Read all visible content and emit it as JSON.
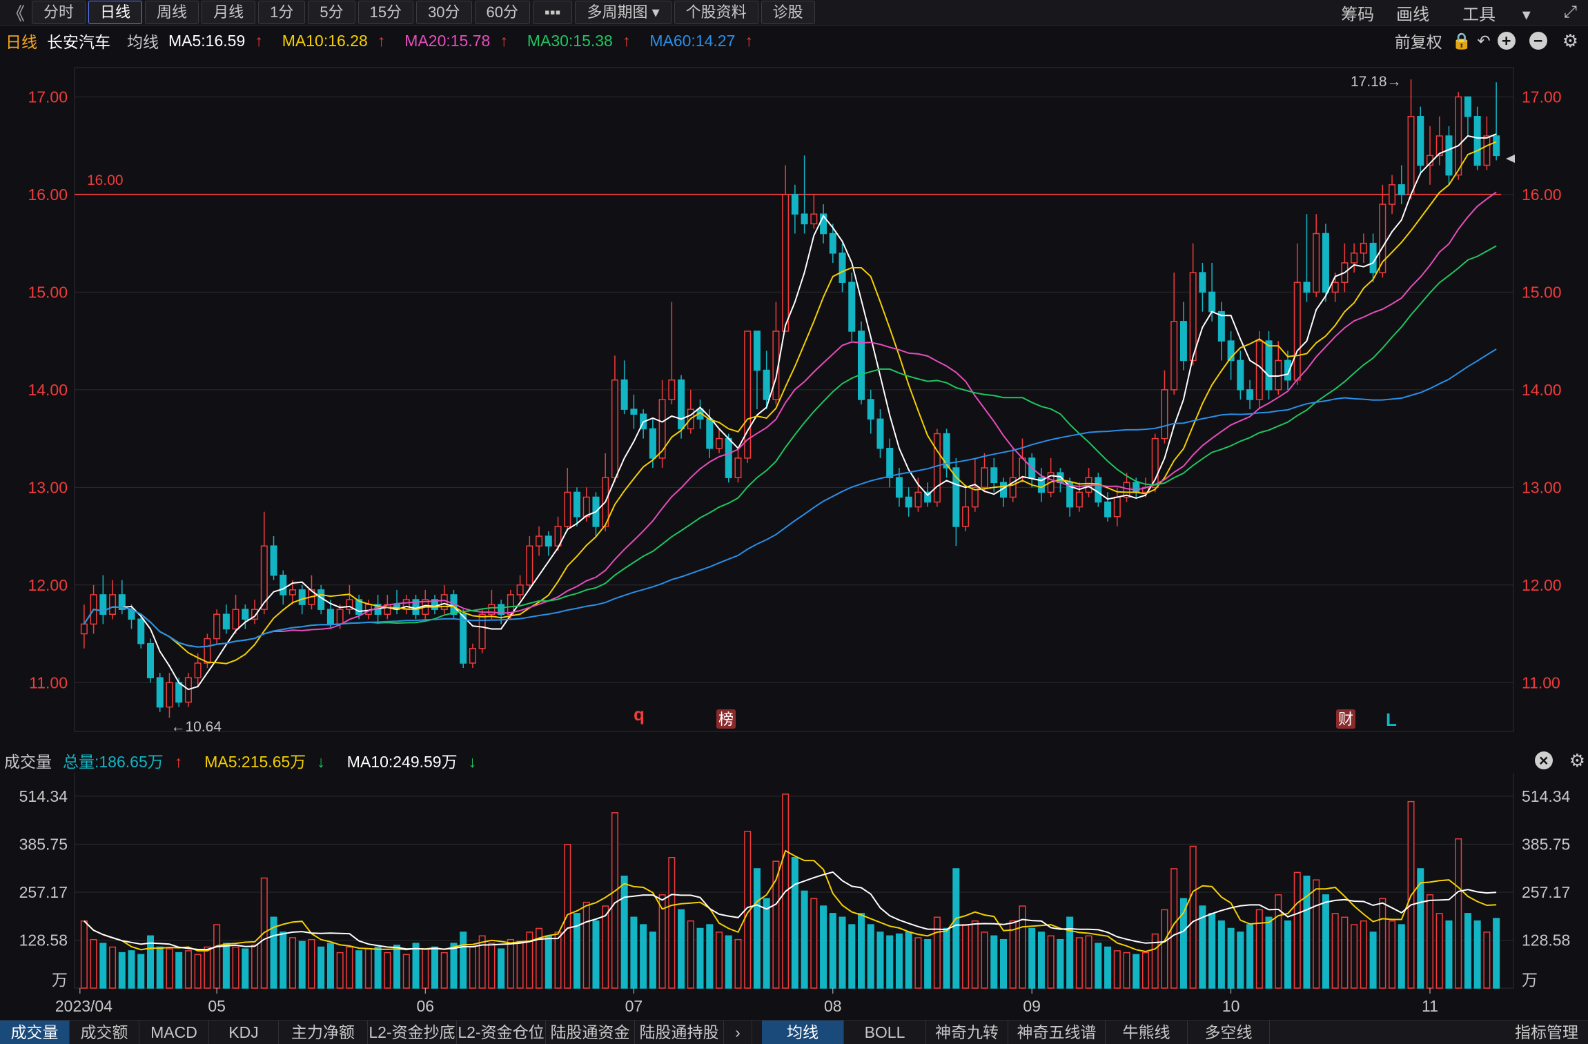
{
  "toolbar": {
    "back": "《",
    "periods": [
      "分时",
      "日线",
      "周线",
      "月线",
      "1分",
      "5分",
      "15分",
      "30分",
      "60分"
    ],
    "more": "▪▪▪",
    "multi": "多周期图",
    "stock_info": "个股资料",
    "diagnose": "诊股",
    "right": [
      "筹码",
      "画线",
      "工具"
    ]
  },
  "info": {
    "period": "日线",
    "name": "长安汽车",
    "ma_label": "均线",
    "ma5": "MA5:16.59",
    "ma10": "MA10:16.28",
    "ma20": "MA20:15.78",
    "ma30": "MA30:15.38",
    "ma60": "MA60:14.27",
    "adjust": "前复权"
  },
  "volume_info": {
    "title": "成交量",
    "total": "总量:186.65万",
    "ma5": "MA5:215.65万",
    "ma10": "MA10:249.59万"
  },
  "price_axis": [
    "17.00",
    "16.00",
    "15.00",
    "14.00",
    "13.00",
    "12.00",
    "11.00"
  ],
  "volume_axis": [
    "514.34",
    "385.75",
    "257.17",
    "128.58",
    "万"
  ],
  "dates": [
    "2023/04",
    "05",
    "06",
    "07",
    "08",
    "09",
    "10",
    "11"
  ],
  "markers": {
    "high_label": "17.18→",
    "low_label": "←10.64",
    "hline_label": "16.00",
    "event_q": "q",
    "event_bang": "榜",
    "event_cai": "财",
    "event_L": "L"
  },
  "bottom_tabs": [
    "成交量",
    "成交额",
    "MACD",
    "KDJ",
    "主力净额",
    "L2-资金抄底",
    "L2-资金仓位",
    "陆股通资金",
    "陆股通持股"
  ],
  "indicator_tabs": [
    "均线",
    "BOLL",
    "神奇九转",
    "神奇五线谱",
    "牛熊线",
    "多空线"
  ],
  "indicator_manage": "指标管理",
  "colors": {
    "up": "#f23b3b",
    "down": "#13b5c4",
    "ma5": "#ffffff",
    "ma10": "#f5d000",
    "ma20": "#e74dbd",
    "ma30": "#1fc65f",
    "ma60": "#2a8fe8",
    "hline": "#e03a3a"
  },
  "chart_data": {
    "type": "candlestick",
    "ylim": [
      10.5,
      17.3
    ],
    "hline": 16.0,
    "vol_ylim": [
      0,
      540
    ],
    "candles": [
      [
        11.5,
        11.6,
        11.8,
        11.35,
        180
      ],
      [
        11.6,
        11.9,
        12.0,
        11.5,
        130
      ],
      [
        11.9,
        11.7,
        12.1,
        11.6,
        120
      ],
      [
        11.7,
        11.9,
        12.05,
        11.65,
        110
      ],
      [
        11.9,
        11.75,
        12.05,
        11.7,
        95
      ],
      [
        11.75,
        11.65,
        11.8,
        11.55,
        100
      ],
      [
        11.65,
        11.4,
        11.7,
        11.35,
        90
      ],
      [
        11.4,
        11.05,
        11.45,
        11.0,
        140
      ],
      [
        11.05,
        10.75,
        11.1,
        10.7,
        110
      ],
      [
        10.75,
        11.0,
        11.1,
        10.64,
        105
      ],
      [
        11.0,
        10.8,
        11.05,
        10.75,
        95
      ],
      [
        10.8,
        11.05,
        11.1,
        10.75,
        100
      ],
      [
        11.05,
        11.2,
        11.3,
        10.95,
        90
      ],
      [
        11.2,
        11.45,
        11.5,
        11.15,
        110
      ],
      [
        11.45,
        11.7,
        11.75,
        11.4,
        170
      ],
      [
        11.7,
        11.55,
        11.8,
        11.5,
        120
      ],
      [
        11.55,
        11.75,
        11.9,
        11.5,
        110
      ],
      [
        11.75,
        11.65,
        11.8,
        11.55,
        105
      ],
      [
        11.65,
        11.75,
        11.85,
        11.6,
        115
      ],
      [
        11.75,
        12.4,
        12.75,
        11.7,
        295
      ],
      [
        12.4,
        12.1,
        12.5,
        12.05,
        190
      ],
      [
        12.1,
        11.9,
        12.15,
        11.8,
        150
      ],
      [
        11.9,
        11.95,
        12.05,
        11.8,
        135
      ],
      [
        11.95,
        11.8,
        12.0,
        11.7,
        125
      ],
      [
        11.8,
        11.95,
        12.1,
        11.75,
        130
      ],
      [
        11.95,
        11.75,
        12.0,
        11.7,
        110
      ],
      [
        11.75,
        11.6,
        11.85,
        11.55,
        120
      ],
      [
        11.6,
        11.75,
        11.8,
        11.55,
        95
      ],
      [
        11.75,
        11.85,
        12.0,
        11.7,
        110
      ],
      [
        11.85,
        11.7,
        11.9,
        11.65,
        100
      ],
      [
        11.7,
        11.8,
        11.85,
        11.65,
        105
      ],
      [
        11.8,
        11.7,
        11.9,
        11.6,
        110
      ],
      [
        11.7,
        11.8,
        11.9,
        11.65,
        95
      ],
      [
        11.8,
        11.75,
        11.95,
        11.7,
        115
      ],
      [
        11.75,
        11.85,
        11.9,
        11.7,
        90
      ],
      [
        11.85,
        11.7,
        11.9,
        11.65,
        120
      ],
      [
        11.7,
        11.85,
        11.95,
        11.65,
        105
      ],
      [
        11.85,
        11.75,
        11.9,
        11.7,
        110
      ],
      [
        11.75,
        11.9,
        12.0,
        11.7,
        95
      ],
      [
        11.9,
        11.7,
        11.95,
        11.65,
        120
      ],
      [
        11.7,
        11.2,
        11.75,
        11.15,
        150
      ],
      [
        11.2,
        11.35,
        11.4,
        11.15,
        110
      ],
      [
        11.35,
        11.7,
        11.75,
        11.3,
        140
      ],
      [
        11.7,
        11.8,
        11.95,
        11.65,
        120
      ],
      [
        11.8,
        11.7,
        11.85,
        11.6,
        105
      ],
      [
        11.7,
        11.9,
        11.95,
        11.65,
        130
      ],
      [
        11.9,
        12.0,
        12.1,
        11.85,
        125
      ],
      [
        12.0,
        12.4,
        12.5,
        11.95,
        150
      ],
      [
        12.4,
        12.5,
        12.6,
        12.3,
        160
      ],
      [
        12.5,
        12.4,
        12.55,
        12.3,
        140
      ],
      [
        12.4,
        12.6,
        12.7,
        12.35,
        150
      ],
      [
        12.6,
        12.95,
        13.2,
        12.55,
        385
      ],
      [
        12.95,
        12.7,
        13.0,
        12.6,
        200
      ],
      [
        12.7,
        12.9,
        13.0,
        12.65,
        230
      ],
      [
        12.9,
        12.6,
        12.95,
        12.5,
        180
      ],
      [
        12.6,
        13.1,
        13.35,
        12.55,
        220
      ],
      [
        13.1,
        14.1,
        14.35,
        13.05,
        470
      ],
      [
        14.1,
        13.8,
        14.3,
        13.75,
        300
      ],
      [
        13.8,
        13.75,
        13.95,
        13.6,
        190
      ],
      [
        13.75,
        13.6,
        13.8,
        13.5,
        170
      ],
      [
        13.6,
        13.3,
        13.7,
        13.2,
        150
      ],
      [
        13.3,
        13.9,
        14.1,
        13.2,
        250
      ],
      [
        13.9,
        14.1,
        14.9,
        13.85,
        350
      ],
      [
        14.1,
        13.6,
        14.15,
        13.5,
        210
      ],
      [
        13.6,
        13.8,
        14.0,
        13.55,
        180
      ],
      [
        13.8,
        13.7,
        13.9,
        13.6,
        160
      ],
      [
        13.7,
        13.4,
        13.8,
        13.3,
        170
      ],
      [
        13.4,
        13.5,
        13.6,
        13.35,
        150
      ],
      [
        13.5,
        13.1,
        13.55,
        13.05,
        140
      ],
      [
        13.1,
        13.3,
        13.4,
        13.05,
        130
      ],
      [
        13.3,
        14.6,
        14.6,
        13.25,
        420
      ],
      [
        14.6,
        14.2,
        14.6,
        13.8,
        320
      ],
      [
        14.2,
        13.9,
        14.4,
        13.8,
        240
      ],
      [
        13.9,
        14.6,
        14.9,
        13.85,
        340
      ],
      [
        14.6,
        16.0,
        16.3,
        14.6,
        520
      ],
      [
        16.0,
        15.8,
        16.1,
        15.6,
        350
      ],
      [
        15.8,
        15.7,
        16.4,
        15.6,
        260
      ],
      [
        15.7,
        15.8,
        16.0,
        15.65,
        240
      ],
      [
        15.8,
        15.6,
        15.9,
        15.5,
        220
      ],
      [
        15.6,
        15.4,
        15.7,
        15.3,
        200
      ],
      [
        15.4,
        15.1,
        15.5,
        15.0,
        190
      ],
      [
        15.1,
        14.6,
        15.2,
        14.5,
        170
      ],
      [
        14.6,
        13.9,
        14.7,
        13.85,
        200
      ],
      [
        13.9,
        13.7,
        14.0,
        13.55,
        170
      ],
      [
        13.7,
        13.4,
        13.8,
        13.3,
        150
      ],
      [
        13.4,
        13.1,
        13.5,
        13.0,
        140
      ],
      [
        13.1,
        12.9,
        13.2,
        12.8,
        145
      ],
      [
        12.9,
        12.8,
        13.0,
        12.7,
        150
      ],
      [
        12.8,
        12.95,
        13.1,
        12.75,
        135
      ],
      [
        12.95,
        12.85,
        13.05,
        12.8,
        130
      ],
      [
        12.85,
        13.55,
        13.6,
        12.8,
        190
      ],
      [
        13.55,
        13.2,
        13.6,
        13.1,
        160
      ],
      [
        13.2,
        12.6,
        13.3,
        12.4,
        320
      ],
      [
        12.6,
        12.8,
        13.0,
        12.55,
        170
      ],
      [
        12.8,
        13.0,
        13.3,
        12.75,
        180
      ],
      [
        13.0,
        13.2,
        13.35,
        12.95,
        150
      ],
      [
        13.2,
        13.05,
        13.3,
        12.95,
        140
      ],
      [
        13.05,
        12.9,
        13.1,
        12.8,
        130
      ],
      [
        12.9,
        13.1,
        13.4,
        12.85,
        180
      ],
      [
        13.1,
        13.3,
        13.5,
        13.05,
        220
      ],
      [
        13.3,
        13.1,
        13.35,
        13.0,
        160
      ],
      [
        13.1,
        12.95,
        13.2,
        12.85,
        150
      ],
      [
        12.95,
        13.15,
        13.3,
        12.9,
        140
      ],
      [
        13.15,
        13.05,
        13.2,
        12.95,
        130
      ],
      [
        13.05,
        12.8,
        13.1,
        12.7,
        190
      ],
      [
        12.8,
        12.95,
        13.05,
        12.75,
        135
      ],
      [
        12.95,
        13.1,
        13.2,
        12.9,
        140
      ],
      [
        13.1,
        12.85,
        13.15,
        12.8,
        120
      ],
      [
        12.85,
        12.7,
        12.95,
        12.65,
        110
      ],
      [
        12.7,
        12.9,
        13.0,
        12.6,
        100
      ],
      [
        12.9,
        13.05,
        13.15,
        12.85,
        95
      ],
      [
        13.05,
        12.95,
        13.1,
        12.9,
        90
      ],
      [
        12.95,
        13.0,
        13.1,
        12.9,
        95
      ],
      [
        13.0,
        13.5,
        13.55,
        12.95,
        145
      ],
      [
        13.5,
        14.0,
        14.2,
        13.45,
        210
      ],
      [
        14.0,
        14.7,
        15.2,
        13.95,
        320
      ],
      [
        14.7,
        14.3,
        14.9,
        14.2,
        240
      ],
      [
        14.3,
        15.2,
        15.5,
        14.25,
        380
      ],
      [
        15.2,
        15.0,
        15.3,
        14.8,
        220
      ],
      [
        15.0,
        14.8,
        15.3,
        14.7,
        200
      ],
      [
        14.8,
        14.5,
        14.9,
        14.3,
        180
      ],
      [
        14.5,
        14.3,
        14.6,
        14.1,
        160
      ],
      [
        14.3,
        14.0,
        14.4,
        13.9,
        150
      ],
      [
        14.0,
        13.9,
        14.1,
        13.8,
        170
      ],
      [
        13.9,
        14.5,
        14.6,
        13.8,
        210
      ],
      [
        14.5,
        14.0,
        14.6,
        13.9,
        190
      ],
      [
        14.0,
        14.3,
        14.5,
        13.95,
        250
      ],
      [
        14.3,
        14.1,
        14.4,
        14.0,
        180
      ],
      [
        14.1,
        15.1,
        15.5,
        14.05,
        310
      ],
      [
        15.1,
        15.0,
        15.8,
        14.9,
        300
      ],
      [
        15.0,
        15.6,
        15.8,
        14.95,
        290
      ],
      [
        15.6,
        15.0,
        15.7,
        14.9,
        250
      ],
      [
        15.0,
        15.1,
        15.2,
        14.9,
        200
      ],
      [
        15.1,
        15.3,
        15.5,
        15.0,
        190
      ],
      [
        15.3,
        15.4,
        15.5,
        15.2,
        170
      ],
      [
        15.4,
        15.5,
        15.6,
        15.3,
        180
      ],
      [
        15.5,
        15.2,
        15.6,
        15.1,
        150
      ],
      [
        15.2,
        15.9,
        16.1,
        15.15,
        240
      ],
      [
        15.9,
        16.1,
        16.2,
        15.8,
        180
      ],
      [
        16.1,
        16.0,
        16.3,
        15.9,
        170
      ],
      [
        16.0,
        16.8,
        17.18,
        15.95,
        500
      ],
      [
        16.8,
        16.3,
        16.9,
        16.2,
        320
      ],
      [
        16.3,
        16.4,
        16.7,
        16.1,
        250
      ],
      [
        16.4,
        16.6,
        16.8,
        16.3,
        200
      ],
      [
        16.6,
        16.2,
        16.7,
        16.1,
        180
      ],
      [
        16.2,
        17.0,
        17.05,
        16.15,
        400
      ],
      [
        17.0,
        16.8,
        17.0,
        16.6,
        200
      ],
      [
        16.8,
        16.3,
        16.9,
        16.25,
        180
      ],
      [
        16.3,
        16.6,
        16.8,
        16.25,
        150
      ],
      [
        16.6,
        16.4,
        17.15,
        16.35,
        186.65
      ]
    ]
  }
}
